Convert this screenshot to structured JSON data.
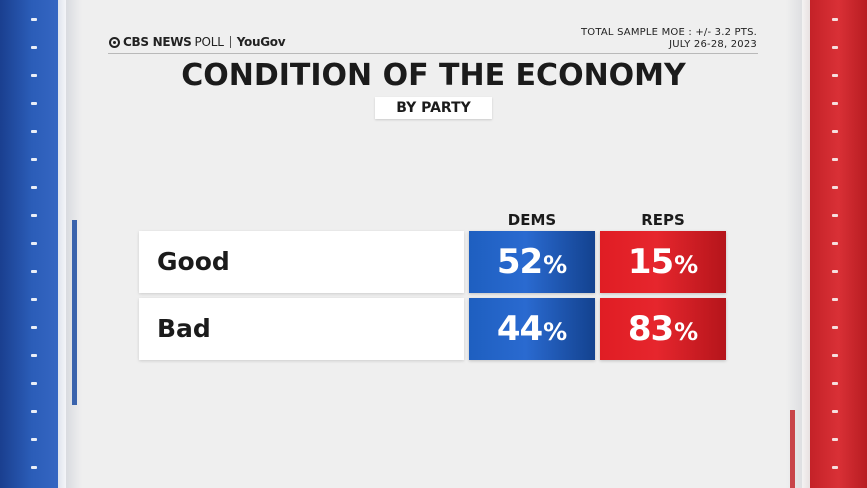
{
  "header": {
    "brand_cbs": "CBS NEWS",
    "brand_poll": "POLL",
    "brand_partner": "YouGov",
    "moe_line1": "TOTAL SAMPLE MOE : +/- 3.2 PTS.",
    "moe_line2": "JULY 26-28, 2023"
  },
  "colors": {
    "dem": "#2a6ad0",
    "rep": "#e6262d",
    "background": "#efefef"
  },
  "chart_data": {
    "type": "table",
    "title": "CONDITION OF THE ECONOMY",
    "subtitle": "BY PARTY",
    "columns": [
      "DEMS",
      "REPS"
    ],
    "rows": [
      {
        "label": "Good",
        "values": [
          52,
          15
        ]
      },
      {
        "label": "Bad",
        "values": [
          44,
          83
        ]
      }
    ],
    "unit": "%"
  }
}
